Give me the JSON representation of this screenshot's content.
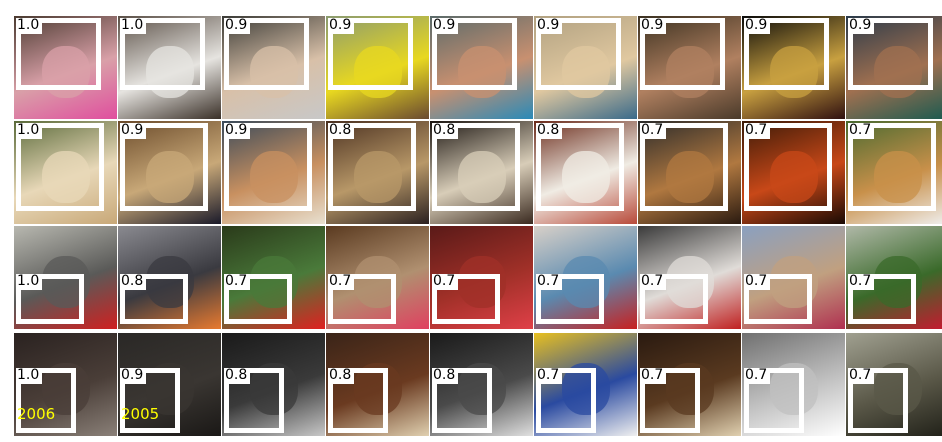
{
  "rows": [
    {
      "category": "faces",
      "scores": [
        "1.0",
        "1.0",
        "0.9",
        "0.9",
        "0.9",
        "0.9",
        "0.9",
        "0.9",
        "0.9"
      ],
      "colors": [
        [
          "#4a3a30",
          "#d9a0a8",
          "#e04e9e"
        ],
        [
          "#5a4f46",
          "#e6e4e0",
          "#3a3028"
        ],
        [
          "#3a3a36",
          "#d8c0a8",
          "#c8c8c8"
        ],
        [
          "#8a9a70",
          "#e8d820",
          "#6a4a30"
        ],
        [
          "#5a6a6a",
          "#c89070",
          "#2a8ab8"
        ],
        [
          "#b0a080",
          "#e0c8a0",
          "#3a6a8a"
        ],
        [
          "#3a3020",
          "#b08060",
          "#4a3a2a"
        ],
        [
          "#0a0a0a",
          "#c8a040",
          "#301010"
        ],
        [
          "#2a3a4a",
          "#a07050",
          "#1a5a50"
        ]
      ]
    },
    {
      "category": "dogs",
      "scores": [
        "1.0",
        "0.9",
        "0.9",
        "0.8",
        "0.8",
        "0.8",
        "0.7",
        "0.7",
        "0.7"
      ],
      "colors": [
        [
          "#5a6a3a",
          "#e8d8b8",
          "#c8a878"
        ],
        [
          "#6a4a2a",
          "#c8a878",
          "#1a1a2a"
        ],
        [
          "#3a4a5a",
          "#c89060",
          "#e8e0d0"
        ],
        [
          "#4a3020",
          "#b89868",
          "#2a2020"
        ],
        [
          "#1a1410",
          "#d8cdb8",
          "#3a2a20"
        ],
        [
          "#6a2a1a",
          "#f0ece4",
          "#b84a3a"
        ],
        [
          "#2a2a2a",
          "#b07840",
          "#2a1a10"
        ],
        [
          "#3a1a08",
          "#c84818",
          "#1a0a04"
        ],
        [
          "#4a6a30",
          "#c8904a",
          "#f0f0f0"
        ]
      ]
    },
    {
      "category": "flowers",
      "scores": [
        "1.0",
        "0.8",
        "0.7",
        "0.7",
        "0.7",
        "0.7",
        "0.7",
        "0.7",
        "0.7"
      ],
      "colors": [
        [
          "#b8b8b0",
          "#5a5a58",
          "#d02020"
        ],
        [
          "#8a8a90",
          "#3a3a40",
          "#e87a30"
        ],
        [
          "#2a3a1a",
          "#4a7a3a",
          "#e02020"
        ],
        [
          "#5a3a20",
          "#b09070",
          "#e04060"
        ],
        [
          "#5a1a18",
          "#a03028",
          "#e04048"
        ],
        [
          "#d8d0c8",
          "#5a8ab0",
          "#c82020"
        ],
        [
          "#3a3a3a",
          "#e0dcd8",
          "#c02020"
        ],
        [
          "#8aa0c0",
          "#c0a080",
          "#b03050"
        ],
        [
          "#b0b8a8",
          "#3a6a2a",
          "#c81830"
        ]
      ]
    },
    {
      "category": "text",
      "scores": [
        "1.0",
        "0.9",
        "0.8",
        "0.8",
        "0.8",
        "0.7",
        "0.7",
        "0.7",
        "0.7"
      ],
      "inner_text": [
        "2006",
        "2005",
        "",
        "",
        "",
        "",
        "",
        "",
        ""
      ],
      "colors": [
        [
          "#2a2220",
          "#4a3e38",
          "#8a8078"
        ],
        [
          "#2a2826",
          "#3a3632",
          "#1a1816"
        ],
        [
          "#1a1a1a",
          "#3a3a3a",
          "#c8c8c8"
        ],
        [
          "#3a2418",
          "#6a3a20",
          "#e0d0b0"
        ],
        [
          "#1a1a1a",
          "#4a4a4a",
          "#e0e0e0"
        ],
        [
          "#e8c020",
          "#2a4aa0",
          "#f0f0f0"
        ],
        [
          "#2a1a10",
          "#5a3a20",
          "#e0d0b0"
        ],
        [
          "#707070",
          "#c0c0c0",
          "#ffffff"
        ],
        [
          "#a0a090",
          "#5a5848",
          "#202018"
        ]
      ]
    }
  ]
}
